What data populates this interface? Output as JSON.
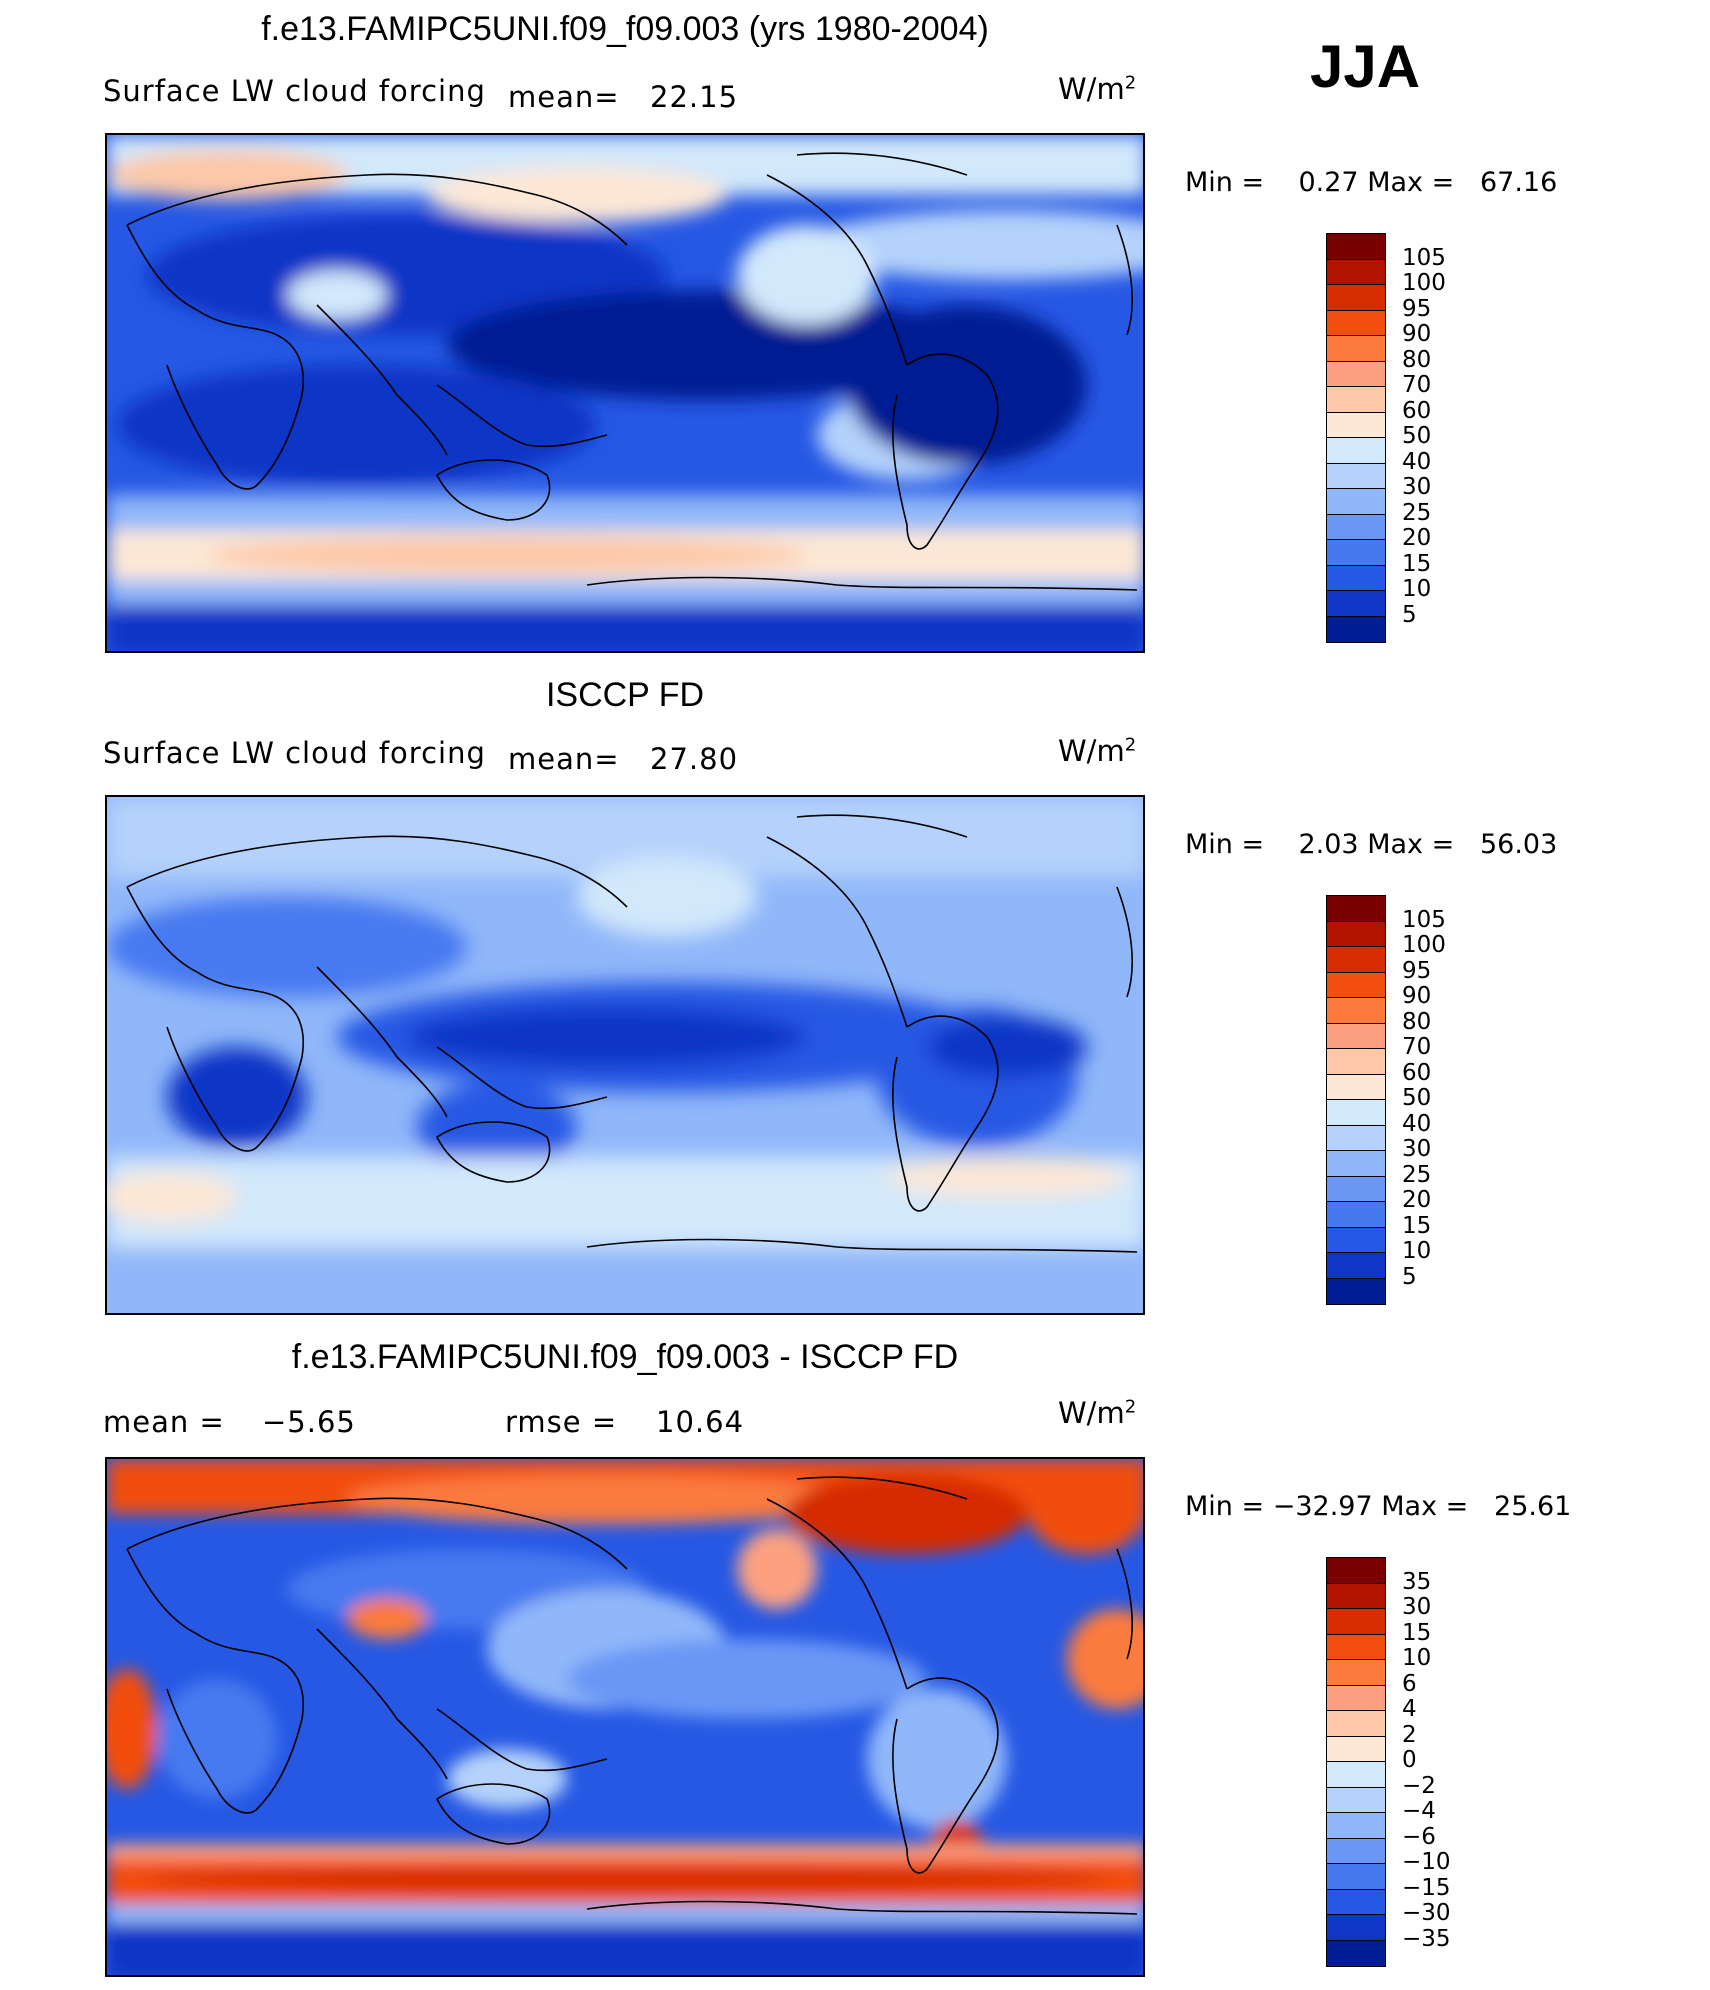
{
  "season": "JJA",
  "panels": [
    {
      "title": "f.e13.FAMIPC5UNI.f09_f09.003 (yrs 1980-2004)",
      "variable": "Surface LW cloud forcing",
      "mean_label": "mean=",
      "mean_value": "22.15",
      "units_base": "W/m",
      "units_exp": "2",
      "min_label": "Min =",
      "min_value": "0.27",
      "max_label": "Max =",
      "max_value": "67.16",
      "levels": [
        "105",
        "100",
        "95",
        "90",
        "80",
        "70",
        "60",
        "50",
        "40",
        "30",
        "25",
        "20",
        "15",
        "10",
        "5"
      ],
      "colors": [
        "#7a0000",
        "#b01400",
        "#d62c00",
        "#f24e10",
        "#fb7a3c",
        "#fca080",
        "#fcc8a8",
        "#fde8d6",
        "#d2e8fb",
        "#b4d2fb",
        "#90b7f9",
        "#6a97f5",
        "#4679f0",
        "#2658e4",
        "#1036c6",
        "#001d93"
      ]
    },
    {
      "title": "ISCCP FD",
      "variable": "Surface LW cloud forcing",
      "mean_label": "mean=",
      "mean_value": "27.80",
      "units_base": "W/m",
      "units_exp": "2",
      "min_label": "Min =",
      "min_value": "2.03",
      "max_label": "Max =",
      "max_value": "56.03",
      "levels": [
        "105",
        "100",
        "95",
        "90",
        "80",
        "70",
        "60",
        "50",
        "40",
        "30",
        "25",
        "20",
        "15",
        "10",
        "5"
      ],
      "colors": [
        "#7a0000",
        "#b01400",
        "#d62c00",
        "#f24e10",
        "#fb7a3c",
        "#fca080",
        "#fcc8a8",
        "#fde8d6",
        "#d2e8fb",
        "#b4d2fb",
        "#90b7f9",
        "#6a97f5",
        "#4679f0",
        "#2658e4",
        "#1036c6",
        "#001d93"
      ]
    },
    {
      "title": "f.e13.FAMIPC5UNI.f09_f09.003 - ISCCP FD",
      "mean_label": "mean =",
      "mean_value": "−5.65",
      "rmse_label": "rmse =",
      "rmse_value": "10.64",
      "units_base": "W/m",
      "units_exp": "2",
      "min_label": "Min =",
      "min_value": "−32.97",
      "max_label": "Max =",
      "max_value": "25.61",
      "levels": [
        "35",
        "30",
        "15",
        "10",
        "6",
        "4",
        "2",
        "0",
        "−2",
        "−4",
        "−6",
        "−10",
        "−15",
        "−30",
        "−35"
      ],
      "colors": [
        "#7a0000",
        "#b01400",
        "#d62c00",
        "#f24e10",
        "#fb7a3c",
        "#fca080",
        "#fcc8a8",
        "#fde8d6",
        "#d2e8fb",
        "#b4d2fb",
        "#90b7f9",
        "#6a97f5",
        "#4679f0",
        "#2658e4",
        "#1036c6",
        "#001d93"
      ]
    }
  ]
}
